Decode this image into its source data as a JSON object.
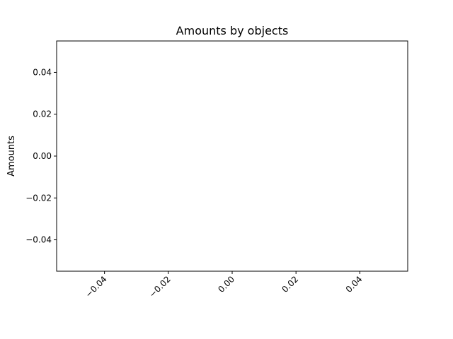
{
  "chart_data": {
    "type": "bar",
    "title": "Amounts by objects",
    "xlabel": "",
    "ylabel": "Amounts",
    "categories": [],
    "values": [],
    "xlim": [
      -0.055,
      0.055
    ],
    "ylim": [
      -0.055,
      0.055
    ],
    "x_ticks": [
      -0.04,
      -0.02,
      0.0,
      0.02,
      0.04
    ],
    "x_tick_labels": [
      "−0.04",
      "−0.02",
      "0.00",
      "0.02",
      "0.04"
    ],
    "x_tick_rotation": 45,
    "y_ticks": [
      0.04,
      0.02,
      0.0,
      -0.02,
      -0.04
    ],
    "y_tick_labels": [
      "0.04",
      "0.02",
      "0.00",
      "−0.02",
      "−0.04"
    ],
    "grid": false,
    "legend": "none"
  },
  "colors": {
    "background": "#ffffff",
    "axes": "#000000",
    "text": "#000000"
  }
}
